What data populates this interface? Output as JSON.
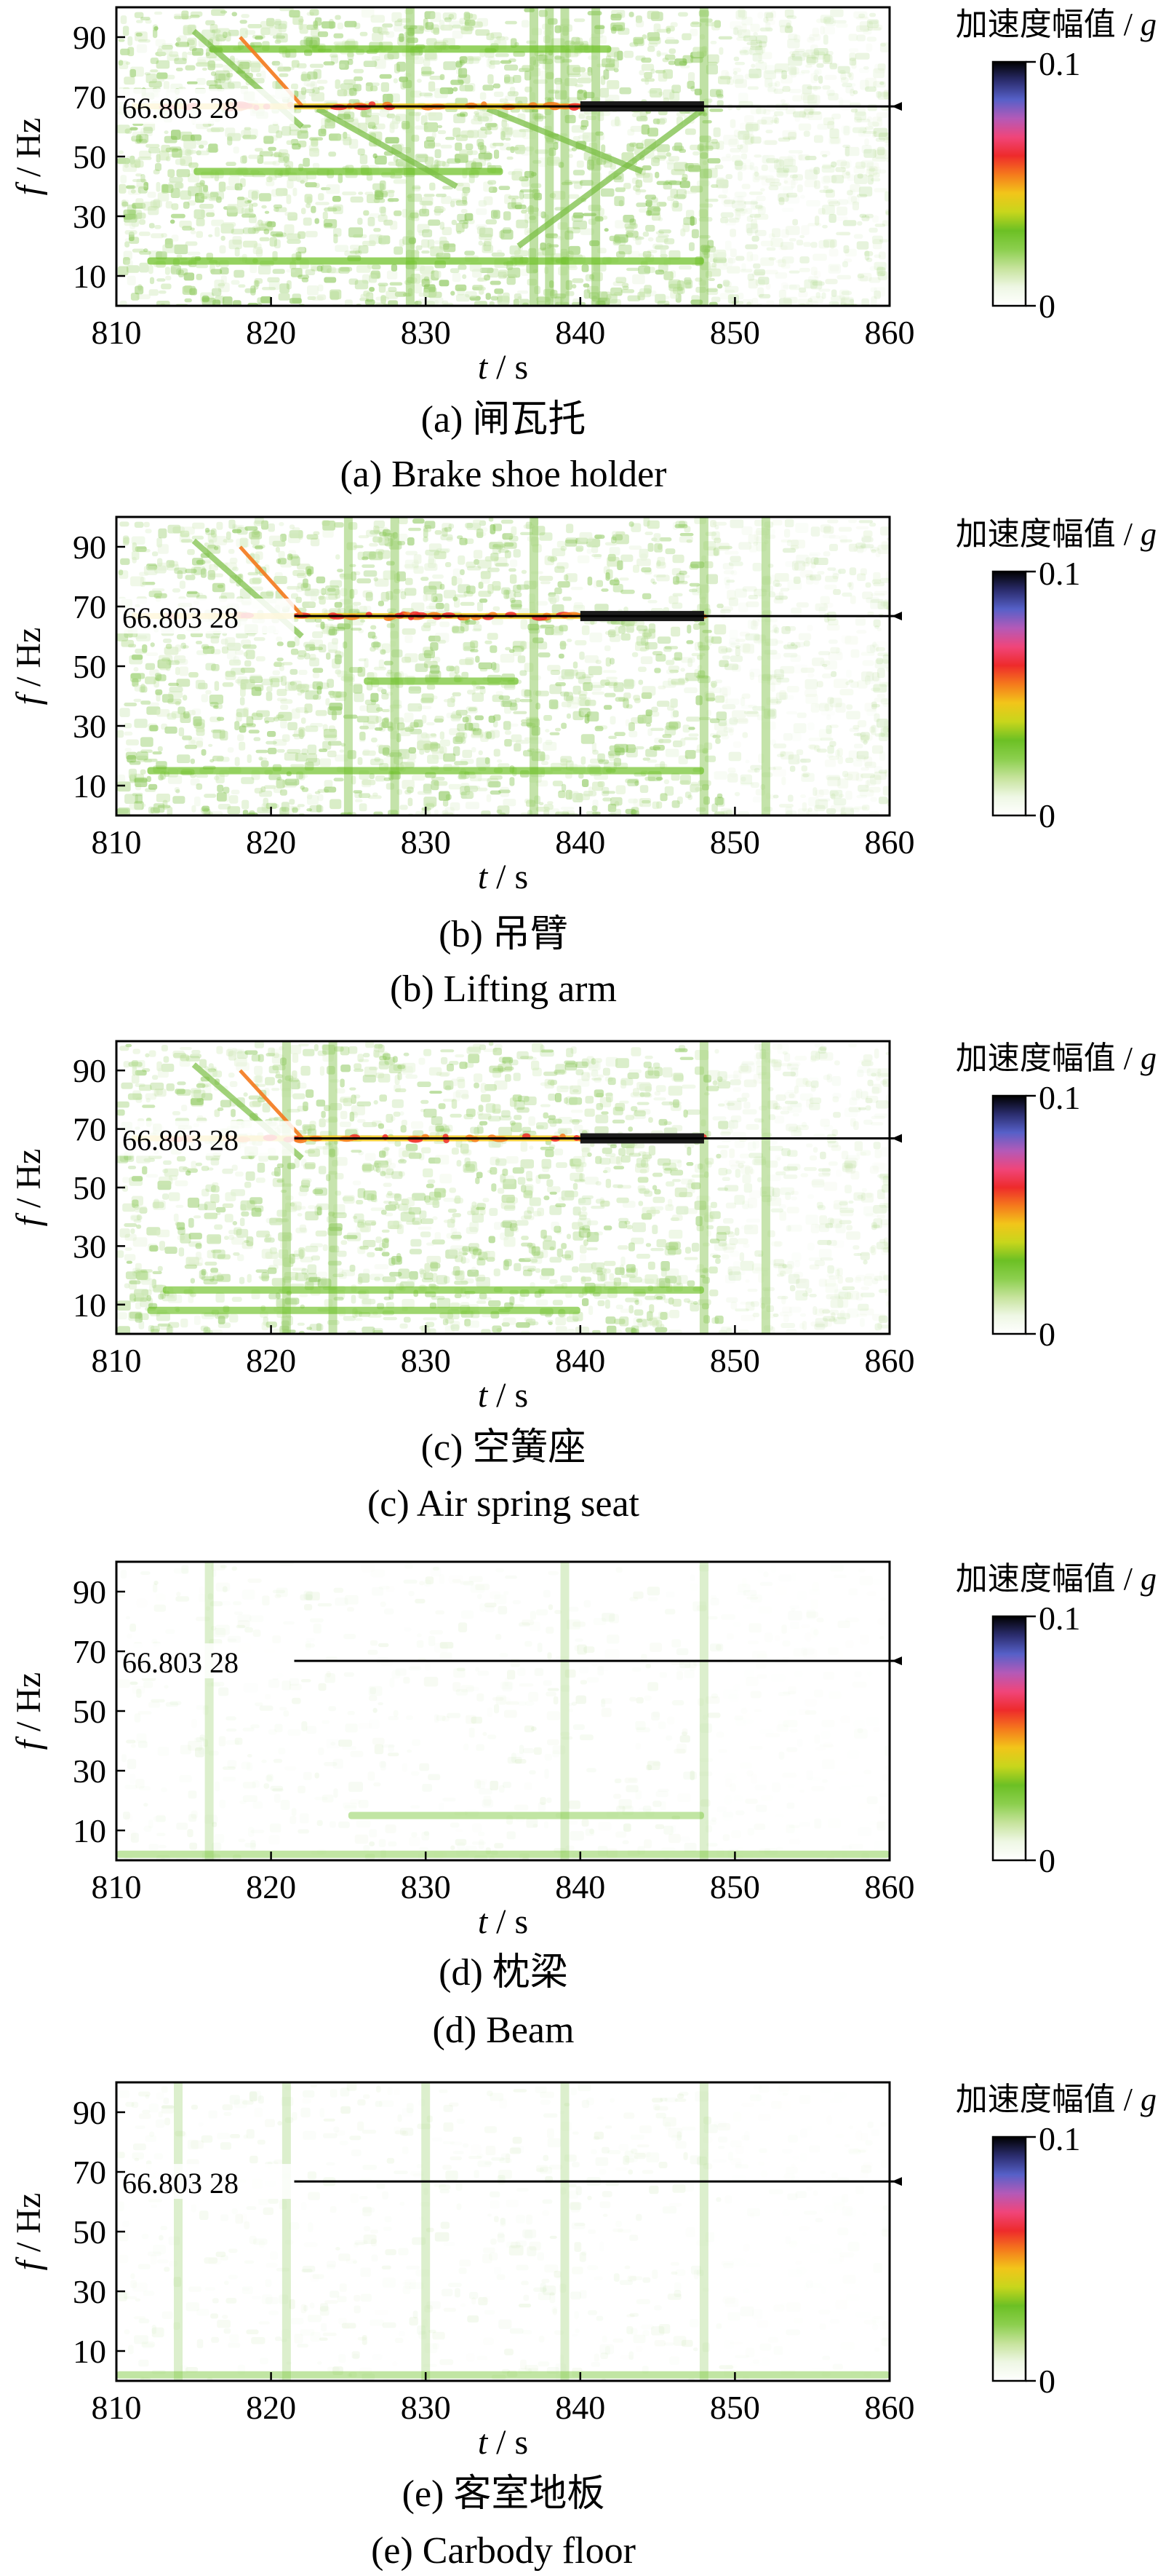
{
  "panels": [
    {
      "id": "a",
      "caption_cn": "(a)  闸瓦托",
      "caption_en": "(a)  Brake shoe holder",
      "intensity": 0.62,
      "bright_band_end": 848,
      "patches": "dense_vertical",
      "ridges": [
        {
          "y": 45,
          "from": 815,
          "to": 835
        },
        {
          "y": 86,
          "from": 816,
          "to": 842
        },
        {
          "y": 15,
          "from": 812,
          "to": 848
        }
      ],
      "vertical_stripes": [
        829,
        837,
        838,
        839,
        841,
        848
      ],
      "diagonals": [
        [
          815,
          92,
          822,
          60
        ],
        [
          823,
          66,
          832,
          40
        ],
        [
          834,
          66,
          844,
          45
        ],
        [
          836,
          20,
          848,
          66
        ]
      ]
    },
    {
      "id": "b",
      "caption_cn": "(b)  吊臂",
      "caption_en": "(b)  Lifting arm",
      "intensity": 0.55,
      "bright_band_end": 848,
      "patches": "dense_uniform",
      "ridges": [
        {
          "y": 45,
          "from": 826,
          "to": 836
        },
        {
          "y": 15,
          "from": 812,
          "to": 848
        }
      ],
      "vertical_stripes": [
        825,
        828,
        837,
        848,
        852
      ],
      "diagonals": [
        [
          815,
          92,
          822,
          60
        ]
      ]
    },
    {
      "id": "c",
      "caption_cn": "(c)  空簧座",
      "caption_en": "(c)  Air spring seat",
      "intensity": 0.5,
      "bright_band_end": 848,
      "patches": "dense_uniform",
      "ridges": [
        {
          "y": 15,
          "from": 813,
          "to": 848
        },
        {
          "y": 8,
          "from": 812,
          "to": 840
        }
      ],
      "vertical_stripes": [
        821,
        824,
        848,
        852
      ],
      "diagonals": [
        [
          815,
          92,
          822,
          60
        ]
      ]
    },
    {
      "id": "d",
      "caption_cn": "(d)  枕梁",
      "caption_en": "(d)  Beam",
      "intensity": 0.12,
      "bright_band_end": 0,
      "patches": "faint",
      "ridges": [
        {
          "y": 15,
          "from": 825,
          "to": 848
        },
        {
          "y": 2,
          "from": 810,
          "to": 860
        }
      ],
      "vertical_stripes": [
        816,
        839,
        848
      ],
      "diagonals": []
    },
    {
      "id": "e",
      "caption_cn": "(e)  客室地板",
      "caption_en": "(e)  Carbody floor",
      "intensity": 0.12,
      "bright_band_end": 0,
      "patches": "faint",
      "ridges": [
        {
          "y": 2,
          "from": 810,
          "to": 860
        }
      ],
      "vertical_stripes": [
        814,
        821,
        830,
        839,
        848
      ],
      "diagonals": []
    }
  ],
  "chart_data": {
    "type": "heatmap",
    "xlabel_var": "t",
    "xlabel_unit": "s",
    "ylabel_var": "f",
    "ylabel_unit": "Hz",
    "xlim": [
      810,
      860
    ],
    "ylim": [
      0,
      100
    ],
    "xticks": [
      810,
      820,
      830,
      840,
      850,
      860
    ],
    "yticks_abcd": [
      10,
      30,
      50,
      70,
      90
    ],
    "yticks_e": [
      10,
      30,
      50,
      70,
      90
    ],
    "reference_line": {
      "y": 66.80328,
      "label": "66.803 28"
    },
    "colorbar": {
      "title_cn": "加速度幅值",
      "title_unit": "g",
      "max_label": "0.1",
      "min_label": "0",
      "range": [
        0,
        0.1
      ],
      "stops": [
        "#ffffff",
        "#eef7e4",
        "#c6e39c",
        "#8ccf4e",
        "#6cc024",
        "#c8d61c",
        "#f2c51a",
        "#f57a1c",
        "#ee2b2b",
        "#f0457a",
        "#b35ab8",
        "#5660c8",
        "#2b2d6e",
        "#000000"
      ]
    }
  }
}
